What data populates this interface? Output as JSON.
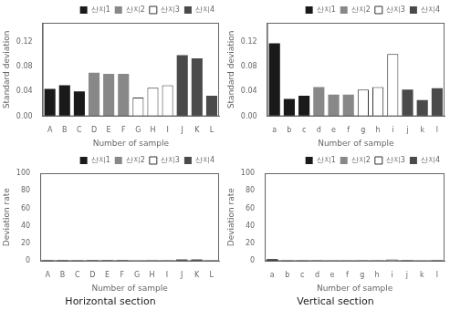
{
  "chart_data": [
    {
      "type": "bar",
      "xlabel": "Number of sample",
      "ylabel": "Standard deviation",
      "categories": [
        "A",
        "B",
        "C",
        "D",
        "E",
        "F",
        "G",
        "H",
        "I",
        "J",
        "K",
        "L"
      ],
      "series": [
        {
          "name": "산지1",
          "color": "#1a1a1a",
          "values": [
            0.044,
            0.05,
            0.04,
            null,
            null,
            null,
            null,
            null,
            null,
            null,
            null,
            null
          ]
        },
        {
          "name": "산지2",
          "color": "#888888",
          "values": [
            null,
            null,
            null,
            0.07,
            0.068,
            0.068,
            null,
            null,
            null,
            null,
            null,
            null
          ]
        },
        {
          "name": "산지3",
          "color": "#ffffff",
          "values": [
            null,
            null,
            null,
            null,
            null,
            null,
            0.03,
            0.046,
            0.05,
            null,
            null,
            null
          ]
        },
        {
          "name": "산지4",
          "color": "#4a4a4a",
          "values": [
            null,
            null,
            null,
            null,
            null,
            null,
            null,
            null,
            null,
            0.098,
            0.093,
            0.033
          ]
        }
      ],
      "ylim": [
        0,
        0.15
      ],
      "yticks": [
        {
          "value": 0,
          "label": "0.00"
        },
        0.04,
        0.08,
        0.12
      ],
      "grid": false,
      "legend": "upper right"
    },
    {
      "type": "bar",
      "xlabel": "Number of sample",
      "ylabel": "Standard deviation",
      "categories": [
        "a",
        "b",
        "c",
        "d",
        "e",
        "f",
        "g",
        "h",
        "i",
        "j",
        "k",
        "l"
      ],
      "series": [
        {
          "name": "산지1",
          "color": "#1a1a1a",
          "values": [
            0.117,
            0.028,
            0.033,
            null,
            null,
            null,
            null,
            null,
            null,
            null,
            null,
            null
          ]
        },
        {
          "name": "산지2",
          "color": "#888888",
          "values": [
            null,
            null,
            null,
            0.047,
            0.035,
            0.035,
            null,
            null,
            null,
            null,
            null,
            null
          ]
        },
        {
          "name": "산지3",
          "color": "#ffffff",
          "values": [
            null,
            null,
            null,
            null,
            null,
            null,
            0.043,
            0.047,
            0.1,
            null,
            null,
            null
          ]
        },
        {
          "name": "산지4",
          "color": "#4a4a4a",
          "values": [
            null,
            null,
            null,
            null,
            null,
            null,
            null,
            null,
            null,
            0.043,
            0.026,
            0.045
          ]
        }
      ],
      "ylim": [
        0,
        0.15
      ],
      "yticks": [
        {
          "value": 0,
          "label": "0.00"
        },
        0.04,
        0.08,
        0.12
      ],
      "grid": false,
      "legend": "upper right"
    },
    {
      "type": "bar",
      "title": "Horizontal section",
      "xlabel": "Number of sample",
      "ylabel": "Deviation rate",
      "categories": [
        "A",
        "B",
        "C",
        "D",
        "E",
        "F",
        "G",
        "H",
        "I",
        "J",
        "K",
        "L"
      ],
      "series": [
        {
          "name": "산지1",
          "color": "#1a1a1a",
          "values": [
            0.87,
            0.99,
            0.8,
            null,
            null,
            null,
            null,
            null,
            null,
            null,
            null,
            null
          ]
        },
        {
          "name": "산지2",
          "color": "#888888",
          "values": [
            null,
            null,
            null,
            1.4,
            1.35,
            1.36,
            null,
            null,
            null,
            null,
            null,
            null
          ]
        },
        {
          "name": "산지3",
          "color": "#ffffff",
          "values": [
            null,
            null,
            null,
            null,
            null,
            null,
            0.6,
            0.91,
            1.0,
            null,
            null,
            null
          ]
        },
        {
          "name": "산지4",
          "color": "#4a4a4a",
          "values": [
            null,
            null,
            null,
            null,
            null,
            null,
            null,
            null,
            null,
            1.95,
            1.86,
            0.65
          ]
        }
      ],
      "ylim": [
        0,
        100
      ],
      "yticks": [
        0,
        20,
        40,
        60,
        80,
        100
      ],
      "grid": false,
      "legend": "upper right"
    },
    {
      "type": "bar",
      "title": "Vertical section",
      "xlabel": "Number of sample",
      "ylabel": "Deviation rate",
      "categories": [
        "a",
        "b",
        "c",
        "d",
        "e",
        "f",
        "g",
        "h",
        "i",
        "j",
        "k",
        "l"
      ],
      "series": [
        {
          "name": "산지1",
          "color": "#1a1a1a",
          "values": [
            2.32,
            0.56,
            0.66,
            null,
            null,
            null,
            null,
            null,
            null,
            null,
            null,
            null
          ]
        },
        {
          "name": "산지2",
          "color": "#888888",
          "values": [
            null,
            null,
            null,
            0.94,
            0.7,
            0.7,
            null,
            null,
            null,
            null,
            null,
            null
          ]
        },
        {
          "name": "산지3",
          "color": "#ffffff",
          "values": [
            null,
            null,
            null,
            null,
            null,
            null,
            0.86,
            0.94,
            2.0,
            null,
            null,
            null
          ]
        },
        {
          "name": "산지4",
          "color": "#4a4a4a",
          "values": [
            null,
            null,
            null,
            null,
            null,
            null,
            null,
            null,
            null,
            0.86,
            0.52,
            0.9
          ]
        }
      ],
      "ylim": [
        0,
        100
      ],
      "yticks": [
        0,
        20,
        40,
        60,
        80,
        100
      ],
      "grid": false,
      "legend": "upper right"
    }
  ]
}
